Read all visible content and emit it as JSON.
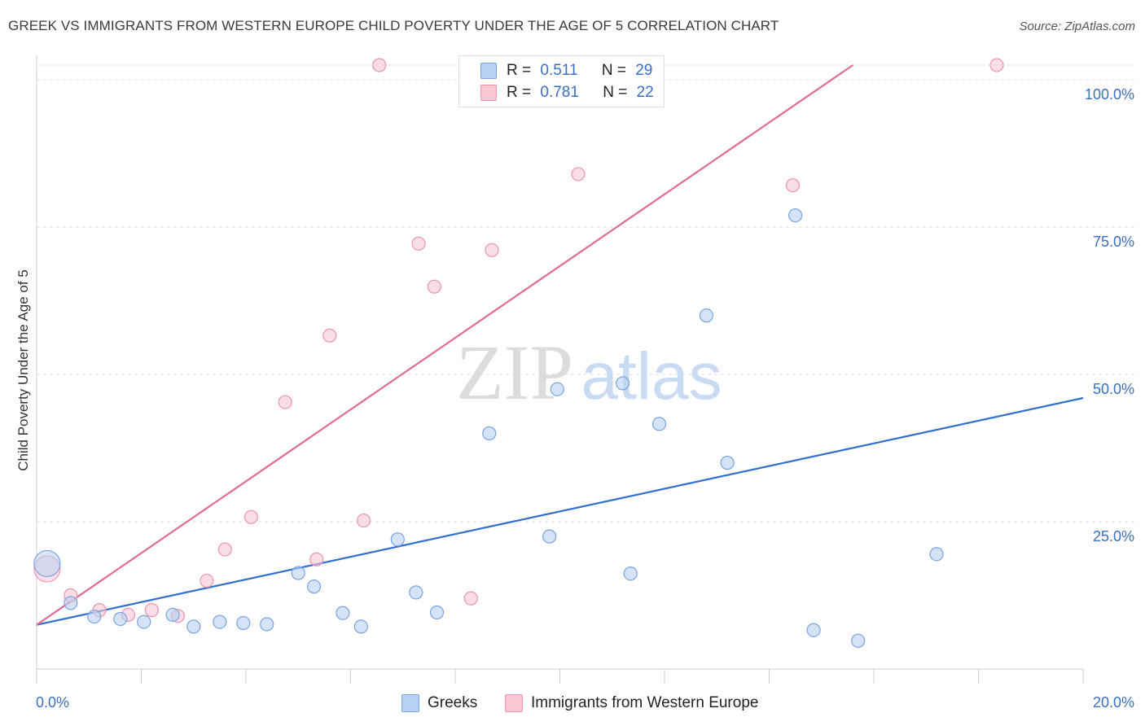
{
  "title": "GREEK VS IMMIGRANTS FROM WESTERN EUROPE CHILD POVERTY UNDER THE AGE OF 5 CORRELATION CHART",
  "source": "Source: ZipAtlas.com",
  "watermark": {
    "zip": "ZIP",
    "atlas": "atlas"
  },
  "legend_top": [
    {
      "r_label": "R =",
      "r_value": "0.511",
      "n_label": "N =",
      "n_value": "29"
    },
    {
      "r_label": "R =",
      "r_value": "0.781",
      "n_label": "N =",
      "n_value": "22"
    }
  ],
  "colors": {
    "greeks_fill": "#b8d1f3",
    "greeks_stroke": "#7ba3dc",
    "greeks_line": "#2f6fcf",
    "immig_fill": "#f9c6d4",
    "immig_stroke": "#eb94b0",
    "immig_line": "#e06b93",
    "axis_label": "#3a6fc4",
    "grid": "#dddddd"
  },
  "chart_data": {
    "type": "scatter",
    "title": "GREEK VS IMMIGRANTS FROM WESTERN EUROPE CHILD POVERTY UNDER THE AGE OF 5 CORRELATION CHART",
    "xlabel": "",
    "ylabel": "Child Poverty Under the Age of 5",
    "xlim": [
      0,
      20
    ],
    "ylim": [
      0,
      100
    ],
    "x_tick_labels": [
      "0.0%",
      "20.0%"
    ],
    "y_ticks": [
      25,
      50,
      75,
      100
    ],
    "y_tick_labels": [
      "25.0%",
      "50.0%",
      "75.0%",
      "100.0%"
    ],
    "grid": true,
    "legend_position": "bottom",
    "series": [
      {
        "name": "Greeks",
        "points": [
          {
            "x": 0.2,
            "y": 17.9,
            "big": true
          },
          {
            "x": 0.65,
            "y": 11.2
          },
          {
            "x": 1.1,
            "y": 8.9
          },
          {
            "x": 1.6,
            "y": 8.5
          },
          {
            "x": 2.05,
            "y": 8.0
          },
          {
            "x": 2.6,
            "y": 9.2
          },
          {
            "x": 3.0,
            "y": 7.2
          },
          {
            "x": 3.5,
            "y": 8.0
          },
          {
            "x": 3.95,
            "y": 7.8
          },
          {
            "x": 4.4,
            "y": 7.6
          },
          {
            "x": 5.0,
            "y": 16.3
          },
          {
            "x": 5.3,
            "y": 14.0
          },
          {
            "x": 5.85,
            "y": 9.5
          },
          {
            "x": 6.2,
            "y": 7.2
          },
          {
            "x": 6.9,
            "y": 22.0
          },
          {
            "x": 7.25,
            "y": 13.0
          },
          {
            "x": 7.65,
            "y": 9.6
          },
          {
            "x": 8.65,
            "y": 40.0
          },
          {
            "x": 9.8,
            "y": 22.5
          },
          {
            "x": 9.95,
            "y": 47.5
          },
          {
            "x": 11.2,
            "y": 48.5
          },
          {
            "x": 11.35,
            "y": 16.2
          },
          {
            "x": 11.9,
            "y": 41.6
          },
          {
            "x": 12.8,
            "y": 60.0
          },
          {
            "x": 13.2,
            "y": 35.0
          },
          {
            "x": 14.5,
            "y": 77.0
          },
          {
            "x": 14.85,
            "y": 6.6
          },
          {
            "x": 15.7,
            "y": 4.8
          },
          {
            "x": 17.2,
            "y": 19.5
          }
        ],
        "trend": {
          "x": [
            0,
            20
          ],
          "y": [
            7.5,
            46.0
          ]
        }
      },
      {
        "name": "Immigrants from Western Europe",
        "points": [
          {
            "x": 0.2,
            "y": 17.0,
            "big": true
          },
          {
            "x": 0.65,
            "y": 12.5
          },
          {
            "x": 1.2,
            "y": 10.0
          },
          {
            "x": 1.75,
            "y": 9.2
          },
          {
            "x": 2.2,
            "y": 10.0
          },
          {
            "x": 2.7,
            "y": 9.0
          },
          {
            "x": 3.25,
            "y": 15.0
          },
          {
            "x": 3.6,
            "y": 20.3
          },
          {
            "x": 4.1,
            "y": 25.8
          },
          {
            "x": 4.75,
            "y": 45.3
          },
          {
            "x": 5.35,
            "y": 18.6
          },
          {
            "x": 5.6,
            "y": 56.6
          },
          {
            "x": 6.25,
            "y": 25.2
          },
          {
            "x": 6.55,
            "y": 102.5
          },
          {
            "x": 7.3,
            "y": 72.2
          },
          {
            "x": 7.6,
            "y": 64.9
          },
          {
            "x": 8.3,
            "y": 12.0
          },
          {
            "x": 8.7,
            "y": 71.1
          },
          {
            "x": 9.1,
            "y": 102.5
          },
          {
            "x": 10.35,
            "y": 84.0
          },
          {
            "x": 14.45,
            "y": 82.1
          },
          {
            "x": 18.35,
            "y": 102.5
          }
        ],
        "trend": {
          "x": [
            0,
            15.6
          ],
          "y": [
            7.5,
            102.5
          ]
        }
      }
    ]
  }
}
